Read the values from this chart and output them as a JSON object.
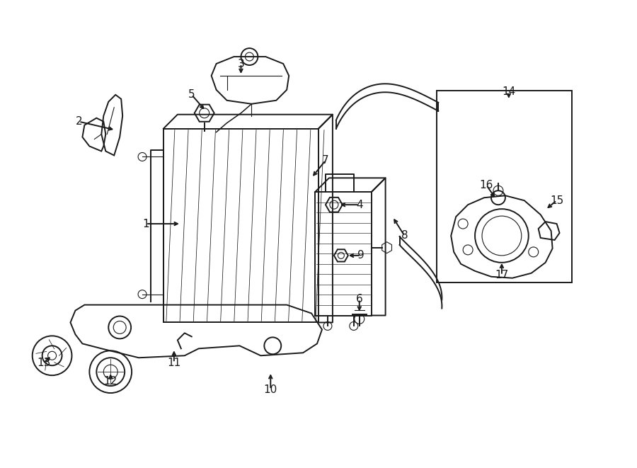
{
  "bg_color": "#ffffff",
  "line_color": "#1a1a1a",
  "fig_width": 9.0,
  "fig_height": 6.61,
  "label_positions": {
    "1": [
      2.05,
      3.45,
      2.55,
      3.45
    ],
    "2": [
      1.1,
      4.9,
      1.62,
      4.78
    ],
    "3": [
      3.4,
      5.72,
      3.4,
      5.55
    ],
    "4": [
      5.08,
      3.72,
      4.78,
      3.72
    ],
    "5": [
      2.7,
      5.28,
      2.9,
      5.05
    ],
    "6": [
      5.08,
      2.38,
      5.08,
      2.18
    ],
    "7": [
      4.6,
      4.35,
      4.4,
      4.1
    ],
    "8": [
      5.72,
      3.28,
      5.55,
      3.55
    ],
    "9": [
      5.1,
      3.0,
      4.9,
      3.0
    ],
    "10": [
      3.82,
      1.1,
      3.82,
      1.35
    ],
    "11": [
      2.45,
      1.48,
      2.45,
      1.68
    ],
    "12": [
      1.55,
      1.22,
      1.55,
      1.35
    ],
    "13": [
      0.6,
      1.48,
      0.72,
      1.58
    ],
    "14": [
      7.2,
      5.32,
      7.2,
      5.2
    ],
    "15": [
      7.88,
      3.78,
      7.72,
      3.65
    ],
    "16": [
      6.88,
      4.0,
      7.02,
      3.8
    ],
    "17": [
      7.1,
      2.72,
      7.1,
      2.92
    ]
  }
}
